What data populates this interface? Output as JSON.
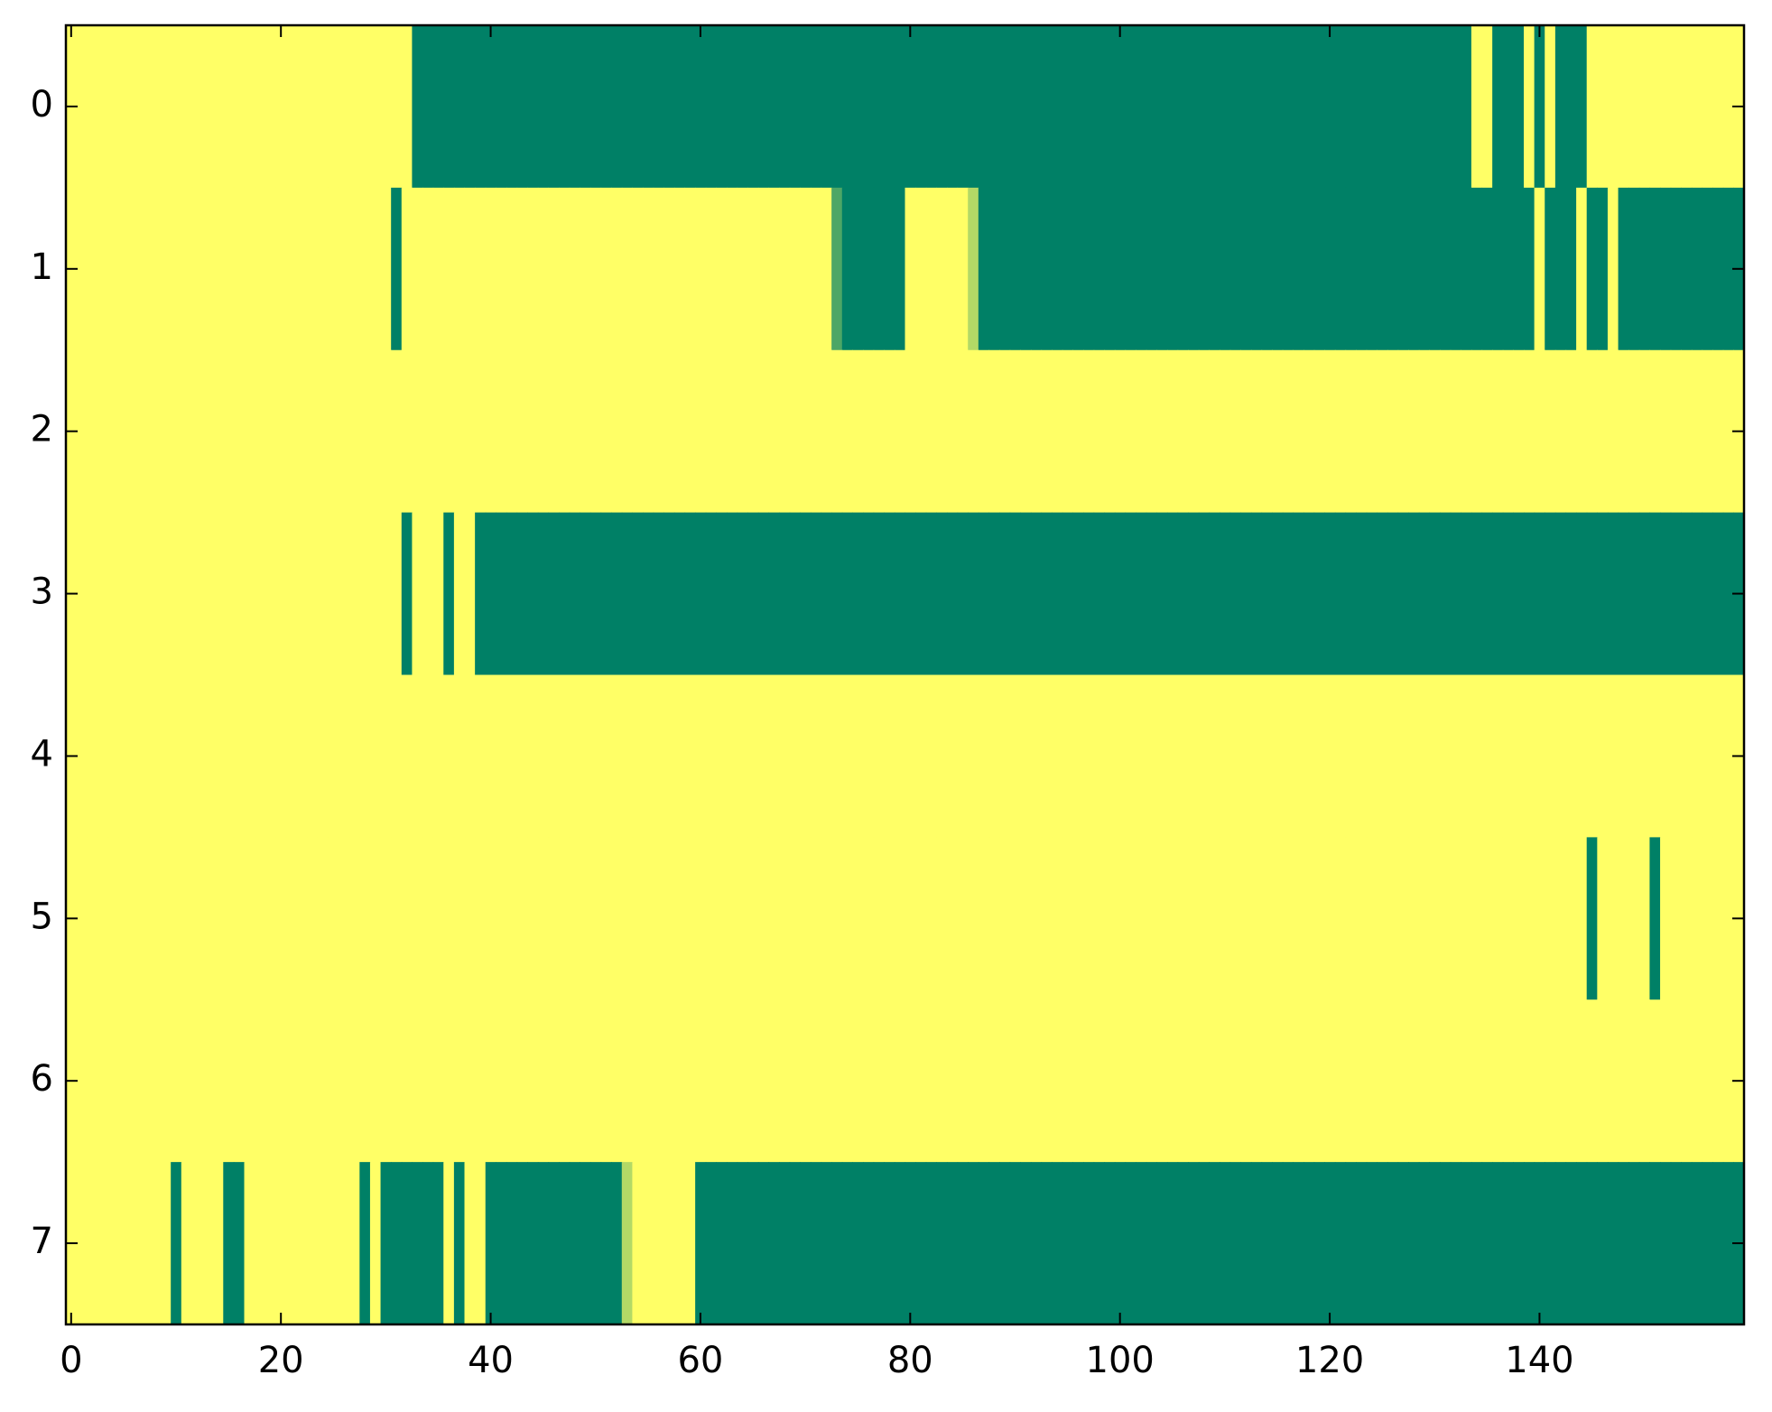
{
  "chart_data": {
    "type": "heatmap",
    "xlim": [
      -0.5,
      159.5
    ],
    "ylim": [
      7.5,
      -0.5
    ],
    "xticks": [
      0,
      20,
      40,
      60,
      80,
      100,
      120,
      140
    ],
    "yticks": [
      0,
      1,
      2,
      3,
      4,
      5,
      6,
      7
    ],
    "colors": [
      "#008066",
      "#ffff66"
    ],
    "z": [
      [
        1,
        1,
        1,
        1,
        1,
        1,
        1,
        1,
        1,
        1,
        1,
        1,
        1,
        1,
        1,
        1,
        1,
        1,
        1,
        1,
        1,
        1,
        1,
        1,
        1,
        1,
        1,
        1,
        1,
        1,
        1,
        1,
        1,
        0,
        0,
        0,
        0,
        0,
        0,
        0,
        0,
        0,
        0,
        0,
        0,
        0,
        0,
        0,
        0,
        0,
        0,
        0,
        0,
        0,
        0,
        0,
        0,
        0,
        0,
        0,
        0,
        0,
        0,
        0,
        0,
        0,
        0,
        0,
        0,
        0,
        0,
        0,
        0,
        0,
        0,
        0,
        0,
        0,
        0,
        0,
        0,
        0,
        0,
        0,
        0,
        0,
        0,
        0,
        0,
        0,
        0,
        0,
        0,
        0,
        0,
        0,
        0,
        0,
        0,
        0,
        0,
        0,
        0,
        0,
        0,
        0,
        0,
        0,
        0,
        0,
        0,
        0,
        0,
        0,
        0,
        0,
        0,
        0,
        0,
        0,
        0,
        0,
        0,
        0,
        0,
        0,
        0,
        0,
        0,
        0,
        0,
        0,
        0,
        0,
        1,
        1,
        0,
        0,
        0,
        1,
        0,
        1,
        0,
        0,
        0,
        1,
        1,
        1,
        1,
        1,
        1,
        1,
        1,
        1,
        1,
        1,
        1,
        1,
        1,
        1
      ],
      [
        1,
        1,
        1,
        1,
        1,
        1,
        1,
        1,
        1,
        1,
        1,
        1,
        1,
        1,
        1,
        1,
        1,
        1,
        1,
        1,
        1,
        1,
        1,
        1,
        1,
        1,
        1,
        1,
        1,
        1,
        1,
        0,
        1,
        1,
        1,
        1,
        1,
        1,
        1,
        1,
        1,
        1,
        1,
        1,
        1,
        1,
        1,
        1,
        1,
        1,
        1,
        1,
        1,
        1,
        1,
        1,
        1,
        1,
        1,
        1,
        1,
        1,
        1,
        1,
        1,
        1,
        1,
        1,
        1,
        1,
        1,
        1,
        1,
        0.3,
        0,
        0,
        0,
        0,
        0,
        0,
        1,
        1,
        1,
        1,
        1,
        1,
        0.7,
        0,
        0,
        0,
        0,
        0,
        0,
        0,
        0,
        0,
        0,
        0,
        0,
        0,
        0,
        0,
        0,
        0,
        0,
        0,
        0,
        0,
        0,
        0,
        0,
        0,
        0,
        0,
        0,
        0,
        0,
        0,
        0,
        0,
        0,
        0,
        0,
        0,
        0,
        0,
        0,
        0,
        0,
        0,
        0,
        0,
        0,
        0,
        0,
        0,
        0,
        0,
        0,
        0,
        1,
        0,
        0,
        0,
        1,
        0,
        0,
        1,
        0,
        0,
        0,
        0,
        0,
        0,
        0,
        0,
        0,
        0,
        0,
        0
      ],
      [
        1,
        1,
        1,
        1,
        1,
        1,
        1,
        1,
        1,
        1,
        1,
        1,
        1,
        1,
        1,
        1,
        1,
        1,
        1,
        1,
        1,
        1,
        1,
        1,
        1,
        1,
        1,
        1,
        1,
        1,
        1,
        1,
        1,
        1,
        1,
        1,
        1,
        1,
        1,
        1,
        1,
        1,
        1,
        1,
        1,
        1,
        1,
        1,
        1,
        1,
        1,
        1,
        1,
        1,
        1,
        1,
        1,
        1,
        1,
        1,
        1,
        1,
        1,
        1,
        1,
        1,
        1,
        1,
        1,
        1,
        1,
        1,
        1,
        1,
        1,
        1,
        1,
        1,
        1,
        1,
        1,
        1,
        1,
        1,
        1,
        1,
        1,
        1,
        1,
        1,
        1,
        1,
        1,
        1,
        1,
        1,
        1,
        1,
        1,
        1,
        1,
        1,
        1,
        1,
        1,
        1,
        1,
        1,
        1,
        1,
        1,
        1,
        1,
        1,
        1,
        1,
        1,
        1,
        1,
        1,
        1,
        1,
        1,
        1,
        1,
        1,
        1,
        1,
        1,
        1,
        1,
        1,
        1,
        1,
        1,
        1,
        1,
        1,
        1,
        1,
        1,
        1,
        1,
        1,
        1,
        1,
        1,
        1,
        1,
        1,
        1,
        1,
        1,
        1,
        1,
        1,
        1,
        1,
        1,
        1
      ],
      [
        1,
        1,
        1,
        1,
        1,
        1,
        1,
        1,
        1,
        1,
        1,
        1,
        1,
        1,
        1,
        1,
        1,
        1,
        1,
        1,
        1,
        1,
        1,
        1,
        1,
        1,
        1,
        1,
        1,
        1,
        1,
        1,
        0,
        1,
        1,
        1,
        0,
        1,
        1,
        0,
        0,
        0,
        0,
        0,
        0,
        0,
        0,
        0,
        0,
        0,
        0,
        0,
        0,
        0,
        0,
        0,
        0,
        0,
        0,
        0,
        0,
        0,
        0,
        0,
        0,
        0,
        0,
        0,
        0,
        0,
        0,
        0,
        0,
        0,
        0,
        0,
        0,
        0,
        0,
        0,
        0,
        0,
        0,
        0,
        0,
        0,
        0,
        0,
        0,
        0,
        0,
        0,
        0,
        0,
        0,
        0,
        0,
        0,
        0,
        0,
        0,
        0,
        0,
        0,
        0,
        0,
        0,
        0,
        0,
        0,
        0,
        0,
        0,
        0,
        0,
        0,
        0,
        0,
        0,
        0,
        0,
        0,
        0,
        0,
        0,
        0,
        0,
        0,
        0,
        0,
        0,
        0,
        0,
        0,
        0,
        0,
        0,
        0,
        0,
        0,
        0,
        0,
        0,
        0,
        0,
        0,
        0,
        0,
        0,
        0,
        0,
        0,
        0,
        0,
        0,
        0,
        0,
        0,
        0,
        0
      ],
      [
        1,
        1,
        1,
        1,
        1,
        1,
        1,
        1,
        1,
        1,
        1,
        1,
        1,
        1,
        1,
        1,
        1,
        1,
        1,
        1,
        1,
        1,
        1,
        1,
        1,
        1,
        1,
        1,
        1,
        1,
        1,
        1,
        1,
        1,
        1,
        1,
        1,
        1,
        1,
        1,
        1,
        1,
        1,
        1,
        1,
        1,
        1,
        1,
        1,
        1,
        1,
        1,
        1,
        1,
        1,
        1,
        1,
        1,
        1,
        1,
        1,
        1,
        1,
        1,
        1,
        1,
        1,
        1,
        1,
        1,
        1,
        1,
        1,
        1,
        1,
        1,
        1,
        1,
        1,
        1,
        1,
        1,
        1,
        1,
        1,
        1,
        1,
        1,
        1,
        1,
        1,
        1,
        1,
        1,
        1,
        1,
        1,
        1,
        1,
        1,
        1,
        1,
        1,
        1,
        1,
        1,
        1,
        1,
        1,
        1,
        1,
        1,
        1,
        1,
        1,
        1,
        1,
        1,
        1,
        1,
        1,
        1,
        1,
        1,
        1,
        1,
        1,
        1,
        1,
        1,
        1,
        1,
        1,
        1,
        1,
        1,
        1,
        1,
        1,
        1,
        1,
        1,
        1,
        1,
        1,
        1,
        1,
        1,
        1,
        1,
        1,
        1,
        1,
        1,
        1,
        1,
        1,
        1,
        1,
        1
      ],
      [
        1,
        1,
        1,
        1,
        1,
        1,
        1,
        1,
        1,
        1,
        1,
        1,
        1,
        1,
        1,
        1,
        1,
        1,
        1,
        1,
        1,
        1,
        1,
        1,
        1,
        1,
        1,
        1,
        1,
        1,
        1,
        1,
        1,
        1,
        1,
        1,
        1,
        1,
        1,
        1,
        1,
        1,
        1,
        1,
        1,
        1,
        1,
        1,
        1,
        1,
        1,
        1,
        1,
        1,
        1,
        1,
        1,
        1,
        1,
        1,
        1,
        1,
        1,
        1,
        1,
        1,
        1,
        1,
        1,
        1,
        1,
        1,
        1,
        1,
        1,
        1,
        1,
        1,
        1,
        1,
        1,
        1,
        1,
        1,
        1,
        1,
        1,
        1,
        1,
        1,
        1,
        1,
        1,
        1,
        1,
        1,
        1,
        1,
        1,
        1,
        1,
        1,
        1,
        1,
        1,
        1,
        1,
        1,
        1,
        1,
        1,
        1,
        1,
        1,
        1,
        1,
        1,
        1,
        1,
        1,
        1,
        1,
        1,
        1,
        1,
        1,
        1,
        1,
        1,
        1,
        1,
        1,
        1,
        1,
        1,
        1,
        1,
        1,
        1,
        1,
        1,
        1,
        1,
        1,
        1,
        0,
        1,
        1,
        1,
        1,
        1,
        0,
        1,
        1,
        1,
        1,
        1,
        1,
        1,
        1
      ],
      [
        1,
        1,
        1,
        1,
        1,
        1,
        1,
        1,
        1,
        1,
        1,
        1,
        1,
        1,
        1,
        1,
        1,
        1,
        1,
        1,
        1,
        1,
        1,
        1,
        1,
        1,
        1,
        1,
        1,
        1,
        1,
        1,
        1,
        1,
        1,
        1,
        1,
        1,
        1,
        1,
        1,
        1,
        1,
        1,
        1,
        1,
        1,
        1,
        1,
        1,
        1,
        1,
        1,
        1,
        1,
        1,
        1,
        1,
        1,
        1,
        1,
        1,
        1,
        1,
        1,
        1,
        1,
        1,
        1,
        1,
        1,
        1,
        1,
        1,
        1,
        1,
        1,
        1,
        1,
        1,
        1,
        1,
        1,
        1,
        1,
        1,
        1,
        1,
        1,
        1,
        1,
        1,
        1,
        1,
        1,
        1,
        1,
        1,
        1,
        1,
        1,
        1,
        1,
        1,
        1,
        1,
        1,
        1,
        1,
        1,
        1,
        1,
        1,
        1,
        1,
        1,
        1,
        1,
        1,
        1,
        1,
        1,
        1,
        1,
        1,
        1,
        1,
        1,
        1,
        1,
        1,
        1,
        1,
        1,
        1,
        1,
        1,
        1,
        1,
        1,
        1,
        1,
        1,
        1,
        1,
        1,
        1,
        1,
        1,
        1,
        1,
        1,
        1,
        1,
        1,
        1,
        1,
        1,
        1,
        1
      ],
      [
        1,
        1,
        1,
        1,
        1,
        1,
        1,
        1,
        1,
        1,
        0,
        1,
        1,
        1,
        1,
        0,
        0,
        1,
        1,
        1,
        1,
        1,
        1,
        1,
        1,
        1,
        1,
        1,
        0,
        1,
        0,
        0,
        0,
        0,
        0,
        0,
        1,
        0,
        1,
        1,
        0,
        0,
        0,
        0,
        0,
        0,
        0,
        0,
        0,
        0,
        0,
        0,
        0,
        0.7,
        1,
        1,
        1,
        1,
        1,
        1,
        0,
        0,
        0,
        0,
        0,
        0,
        0,
        0,
        0,
        0,
        0,
        0,
        0,
        0,
        0,
        0,
        0,
        0,
        0,
        0,
        0,
        0,
        0,
        0,
        0,
        0,
        0,
        0,
        0,
        0,
        0,
        0,
        0,
        0,
        0,
        0,
        0,
        0,
        0,
        0,
        0,
        0,
        0,
        0,
        0,
        0,
        0,
        0,
        0,
        0,
        0,
        0,
        0,
        0,
        0,
        0,
        0,
        0,
        0,
        0,
        0,
        0,
        0,
        0,
        0,
        0,
        0,
        0,
        0,
        0,
        0,
        0,
        0,
        0,
        0,
        0,
        0,
        0,
        0,
        0,
        0,
        0,
        0,
        0,
        0,
        0,
        0,
        0,
        0,
        0,
        0,
        0,
        0,
        0,
        0,
        0,
        0,
        0,
        0,
        0
      ]
    ]
  }
}
